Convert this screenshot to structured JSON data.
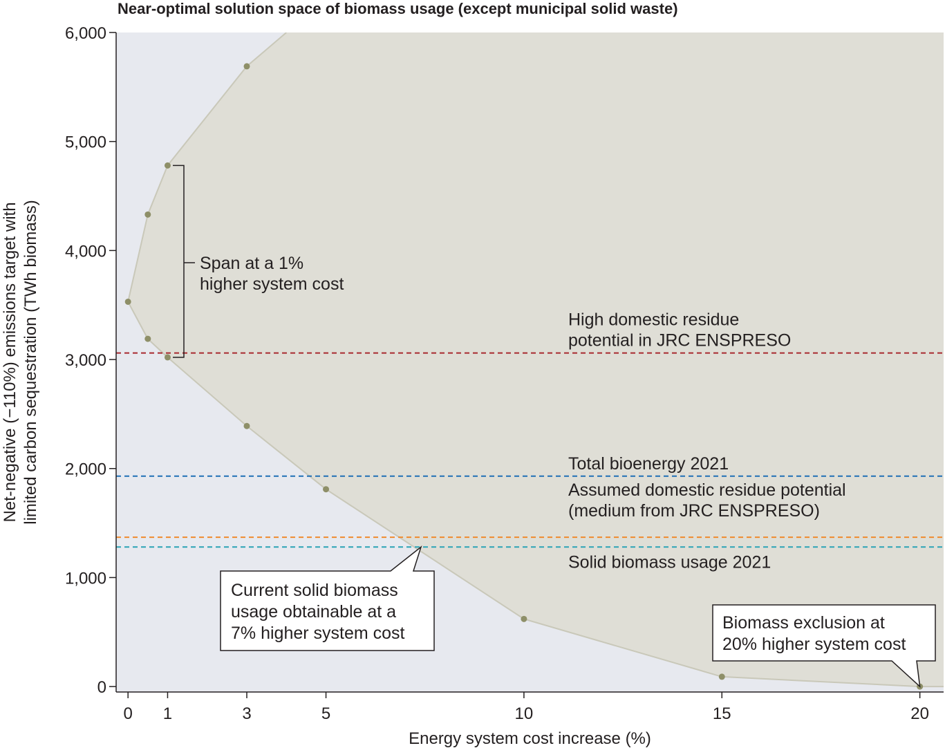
{
  "chart_data": {
    "type": "area",
    "title": "Near-optimal solution space of biomass usage (except municipal solid waste)",
    "xlabel": "Energy system cost increase (%)",
    "ylabel_lines": [
      "Net-negative (−110%) emissions target with",
      "limited carbon sequestration (TWh biomass)"
    ],
    "xlim": [
      -0.3,
      20.6
    ],
    "ylim": [
      -50,
      6000
    ],
    "x_ticks": [
      {
        "value": 0,
        "label": "0"
      },
      {
        "value": 1,
        "label": "1"
      },
      {
        "value": 3,
        "label": "3"
      },
      {
        "value": 5,
        "label": "5"
      },
      {
        "value": 10,
        "label": "10"
      },
      {
        "value": 15,
        "label": "15"
      },
      {
        "value": 20,
        "label": "20"
      }
    ],
    "y_ticks": [
      {
        "value": 0,
        "label": "0"
      },
      {
        "value": 1000,
        "label": "1,000"
      },
      {
        "value": 2000,
        "label": "2,000"
      },
      {
        "value": 3000,
        "label": "3,000"
      },
      {
        "value": 4000,
        "label": "4,000"
      },
      {
        "value": 5000,
        "label": "5,000"
      },
      {
        "value": 6000,
        "label": "6,000"
      }
    ],
    "upper_boundary": [
      {
        "x": 0,
        "y": 3530
      },
      {
        "x": 0.5,
        "y": 4330
      },
      {
        "x": 1,
        "y": 4780
      },
      {
        "x": 3,
        "y": 5690
      },
      {
        "x": 4,
        "y": 6000
      }
    ],
    "lower_boundary": [
      {
        "x": 0,
        "y": 3530
      },
      {
        "x": 0.5,
        "y": 3190
      },
      {
        "x": 1,
        "y": 3020
      },
      {
        "x": 3,
        "y": 2390
      },
      {
        "x": 5,
        "y": 1810
      },
      {
        "x": 10,
        "y": 620
      },
      {
        "x": 15,
        "y": 90
      },
      {
        "x": 20,
        "y": 0
      },
      {
        "x": 20.6,
        "y": 0
      }
    ],
    "points": [
      {
        "x": 0,
        "y": 3530
      },
      {
        "x": 0.5,
        "y": 4330
      },
      {
        "x": 1,
        "y": 4780
      },
      {
        "x": 3,
        "y": 5690
      },
      {
        "x": 0.5,
        "y": 3190
      },
      {
        "x": 1,
        "y": 3020
      },
      {
        "x": 3,
        "y": 2390
      },
      {
        "x": 5,
        "y": 1810
      },
      {
        "x": 10,
        "y": 620
      },
      {
        "x": 15,
        "y": 90
      },
      {
        "x": 20,
        "y": 0
      }
    ],
    "reference_lines": [
      {
        "y": 3060,
        "color": "#a8282e",
        "label_lines": [
          "High domestic residue",
          "potential in JRC ENSPRESO"
        ]
      },
      {
        "y": 1930,
        "color": "#1f6fb5",
        "label_lines": [
          "Total bioenergy 2021"
        ]
      },
      {
        "y": 1370,
        "color": "#f08a2c",
        "label_lines": [
          "Assumed domestic residue potential",
          "(medium from JRC ENSPRESO)"
        ]
      },
      {
        "y": 1280,
        "color": "#2aa3b5",
        "label_lines": [
          "Solid biomass usage 2021"
        ]
      }
    ],
    "annotations": {
      "span": {
        "x": 1,
        "y_low": 3020,
        "y_high": 4780,
        "label_lines": [
          "Span at a 1%",
          "higher system cost"
        ]
      },
      "current": {
        "x": 7.4,
        "y": 1280,
        "label_lines": [
          "Current solid biomass",
          "usage obtainable at a",
          "7% higher system cost"
        ]
      },
      "exclusion": {
        "x": 20,
        "y": 0,
        "label_lines": [
          "Biomass exclusion at",
          "20% higher system cost"
        ]
      }
    },
    "colors": {
      "plot_background": "#e7e9ef",
      "solution_area": "#dfded6",
      "area_edge": "#c9c8b9",
      "points": "#8e8f68",
      "axis": "#231f20"
    }
  }
}
